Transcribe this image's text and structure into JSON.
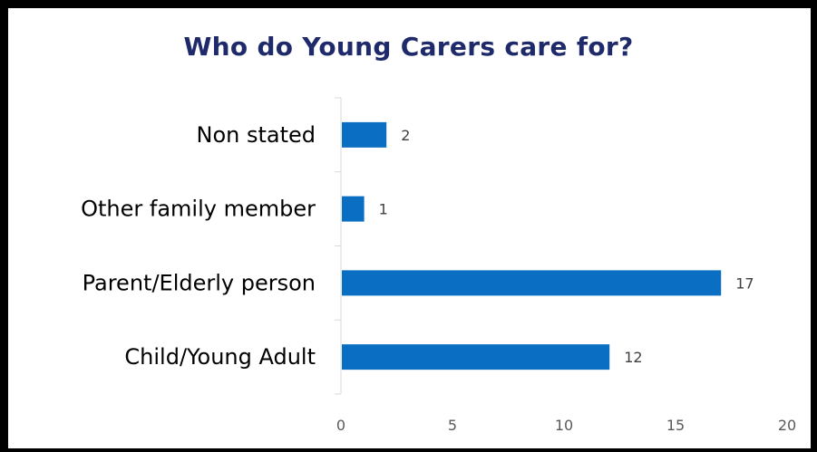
{
  "chart_data": {
    "type": "bar",
    "orientation": "horizontal",
    "title": "Who do Young Carers care for?",
    "categories": [
      "Non stated",
      "Other family member",
      "Parent/Elderly person",
      "Child/Young Adult"
    ],
    "values": [
      2,
      1,
      17,
      12
    ],
    "xlim": [
      0,
      20
    ],
    "x_ticks": [
      "0",
      "5",
      "10",
      "15",
      "20"
    ],
    "xlabel": "",
    "ylabel": "",
    "grid": false,
    "legend": "none",
    "bar_color": "#0a6fc2",
    "title_color": "#1f2a6b"
  }
}
